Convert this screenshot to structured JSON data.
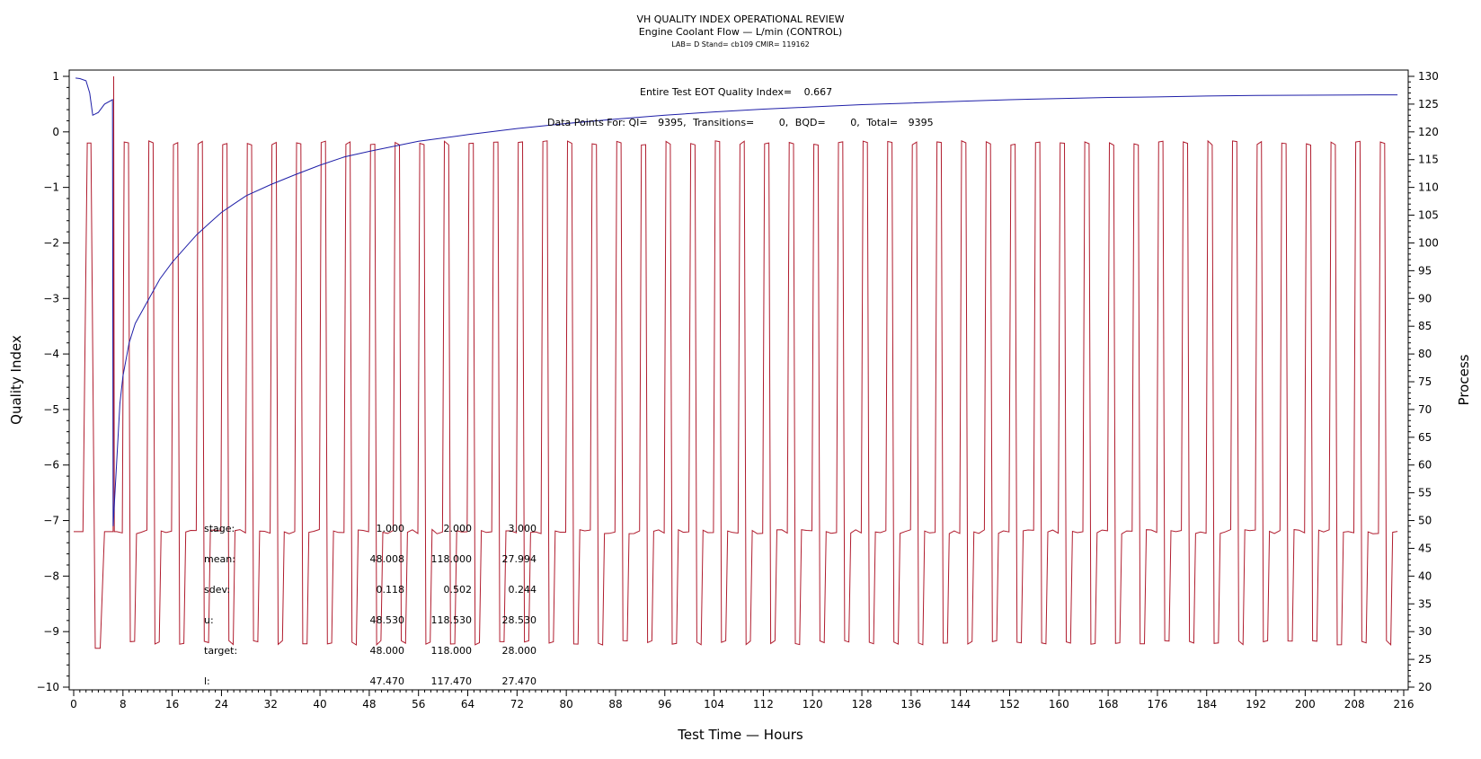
{
  "chart_data": {
    "type": "line",
    "title": "VH QUALITY INDEX OPERATIONAL REVIEW",
    "subtitle": "Engine Coolant Flow — L/min (CONTROL)",
    "lab_line": "LAB= D Stand= cb109 CMIR= 119162",
    "xlabel": "Test Time — Hours",
    "ylabel": "Quality Index",
    "y2label": "Process",
    "xlim": [
      0,
      216
    ],
    "ylim": [
      -10,
      1
    ],
    "y2lim": [
      20,
      130
    ],
    "xticks": [
      0,
      8,
      16,
      24,
      32,
      40,
      48,
      56,
      64,
      72,
      80,
      88,
      96,
      104,
      112,
      120,
      128,
      136,
      144,
      152,
      160,
      168,
      176,
      184,
      192,
      200,
      208,
      216
    ],
    "yticks": [
      1,
      0,
      -1,
      -2,
      -3,
      -4,
      -5,
      -6,
      -7,
      -8,
      -9,
      -10
    ],
    "y2ticks": [
      130,
      125,
      120,
      115,
      110,
      105,
      100,
      95,
      90,
      85,
      80,
      75,
      70,
      65,
      60,
      55,
      50,
      45,
      40,
      35,
      30,
      25,
      20
    ],
    "annotations": {
      "qi_label": "Entire Test EOT Quality Index=",
      "qi_value": "0.667",
      "points_label": "Data Points For: QI=",
      "qi_points": "9395",
      "transitions_label": "Transitions=",
      "transitions": "0",
      "bqd_label": "BQD=",
      "bqd": "0",
      "total_label": "Total=",
      "total": "9395"
    },
    "stats_table": {
      "rows": [
        {
          "label": "stage:",
          "values": [
            "1.000",
            "2.000",
            "3.000"
          ]
        },
        {
          "label": "mean:",
          "values": [
            "48.008",
            "118.000",
            "27.994"
          ]
        },
        {
          "label": "sdev:",
          "values": [
            "0.118",
            "0.502",
            "0.244"
          ]
        },
        {
          "label": "u:",
          "values": [
            "48.530",
            "118.530",
            "28.530"
          ]
        },
        {
          "label": "target:",
          "values": [
            "48.000",
            "118.000",
            "28.000"
          ]
        },
        {
          "label": "l:",
          "values": [
            "47.470",
            "117.470",
            "27.470"
          ]
        }
      ]
    },
    "series": [
      {
        "axis": "left",
        "color": "#1f1fa8",
        "points": [
          [
            0.3,
            0.97
          ],
          [
            1.0,
            0.96
          ],
          [
            2.0,
            0.92
          ],
          [
            2.6,
            0.7
          ],
          [
            3.1,
            0.3
          ],
          [
            4.0,
            0.35
          ],
          [
            5.0,
            0.5
          ],
          [
            6.3,
            0.58
          ],
          [
            6.4,
            -7.1
          ],
          [
            7.0,
            -5.9
          ],
          [
            7.5,
            -4.9
          ],
          [
            8.0,
            -4.4
          ],
          [
            9.0,
            -3.8
          ],
          [
            10.0,
            -3.45
          ],
          [
            12.0,
            -3.05
          ],
          [
            14.0,
            -2.65
          ],
          [
            16.0,
            -2.35
          ],
          [
            18.0,
            -2.1
          ],
          [
            20.0,
            -1.85
          ],
          [
            22.0,
            -1.65
          ],
          [
            24.0,
            -1.45
          ],
          [
            26.0,
            -1.3
          ],
          [
            28.0,
            -1.15
          ],
          [
            32.0,
            -0.95
          ],
          [
            36.0,
            -0.77
          ],
          [
            40.0,
            -0.6
          ],
          [
            44.0,
            -0.45
          ],
          [
            48.0,
            -0.35
          ],
          [
            56.0,
            -0.17
          ],
          [
            64.0,
            -0.05
          ],
          [
            72.0,
            0.06
          ],
          [
            80.0,
            0.15
          ],
          [
            88.0,
            0.23
          ],
          [
            96.0,
            0.3
          ],
          [
            104.0,
            0.36
          ],
          [
            112.0,
            0.41
          ],
          [
            120.0,
            0.45
          ],
          [
            128.0,
            0.49
          ],
          [
            136.0,
            0.52
          ],
          [
            144.0,
            0.55
          ],
          [
            152.0,
            0.58
          ],
          [
            160.0,
            0.6
          ],
          [
            168.0,
            0.62
          ],
          [
            176.0,
            0.63
          ],
          [
            184.0,
            0.645
          ],
          [
            192.0,
            0.655
          ],
          [
            200.0,
            0.66
          ],
          [
            208.0,
            0.665
          ],
          [
            215.0,
            0.667
          ]
        ]
      },
      {
        "axis": "right",
        "color": "#b01c2e",
        "cycle_hours": 4,
        "stage_means": [
          48.0,
          118.0,
          28.0
        ],
        "points": [
          [
            0.0,
            48
          ],
          [
            1.5,
            48
          ],
          [
            2.2,
            118
          ],
          [
            2.8,
            118
          ],
          [
            3.5,
            27
          ],
          [
            4.3,
            27
          ],
          [
            5.0,
            48
          ],
          [
            6.4,
            48
          ],
          [
            6.5,
            130
          ],
          [
            6.6,
            48
          ],
          [
            7.0,
            48
          ]
        ]
      }
    ]
  }
}
